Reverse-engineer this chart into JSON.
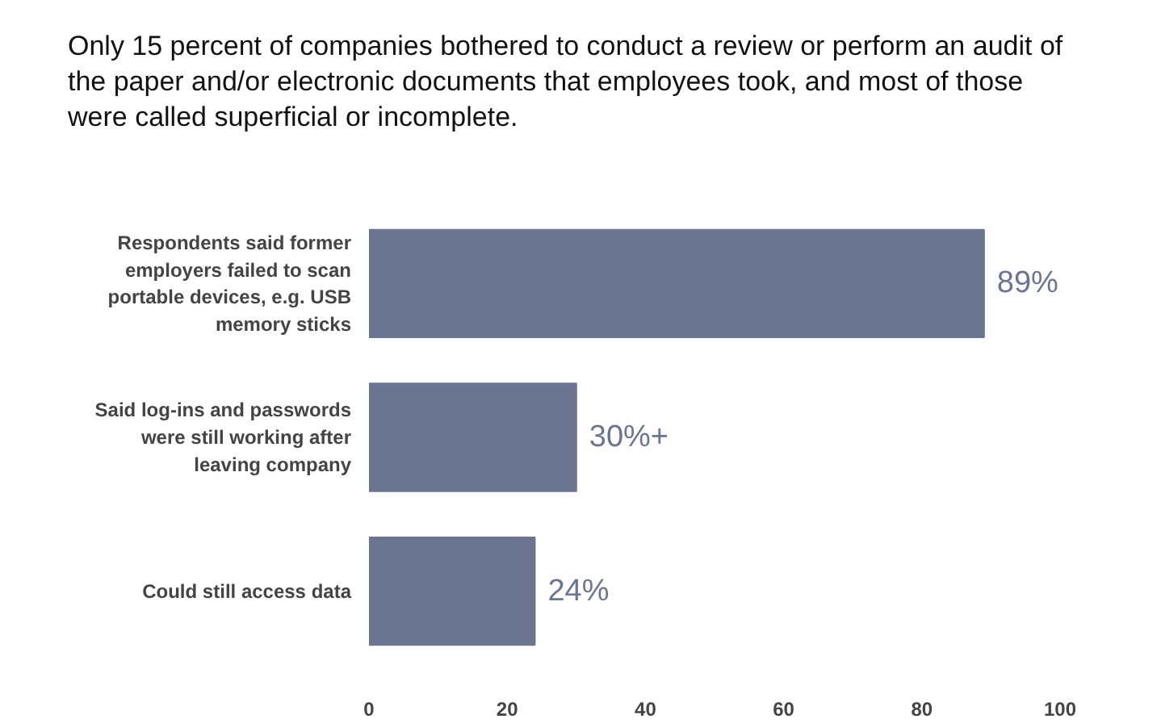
{
  "chart_data": {
    "type": "bar",
    "orientation": "horizontal",
    "title": "Only 15 percent of companies bothered to conduct a review or perform an audit of the paper and/or electronic documents that employees took, and most of those were called superficial or incomplete.",
    "categories": [
      "Respondents said former employers failed to scan portable devices, e.g. USB memory sticks",
      "Said log-ins and passwords were still working after leaving company",
      "Could still access data"
    ],
    "values": [
      89,
      30,
      24
    ],
    "value_labels": [
      "89%",
      "30%+",
      "24%"
    ],
    "color": "#6b7590",
    "xlim": [
      0,
      100
    ],
    "xticks": [
      0,
      20,
      40,
      60,
      80,
      100
    ],
    "grid": false
  }
}
